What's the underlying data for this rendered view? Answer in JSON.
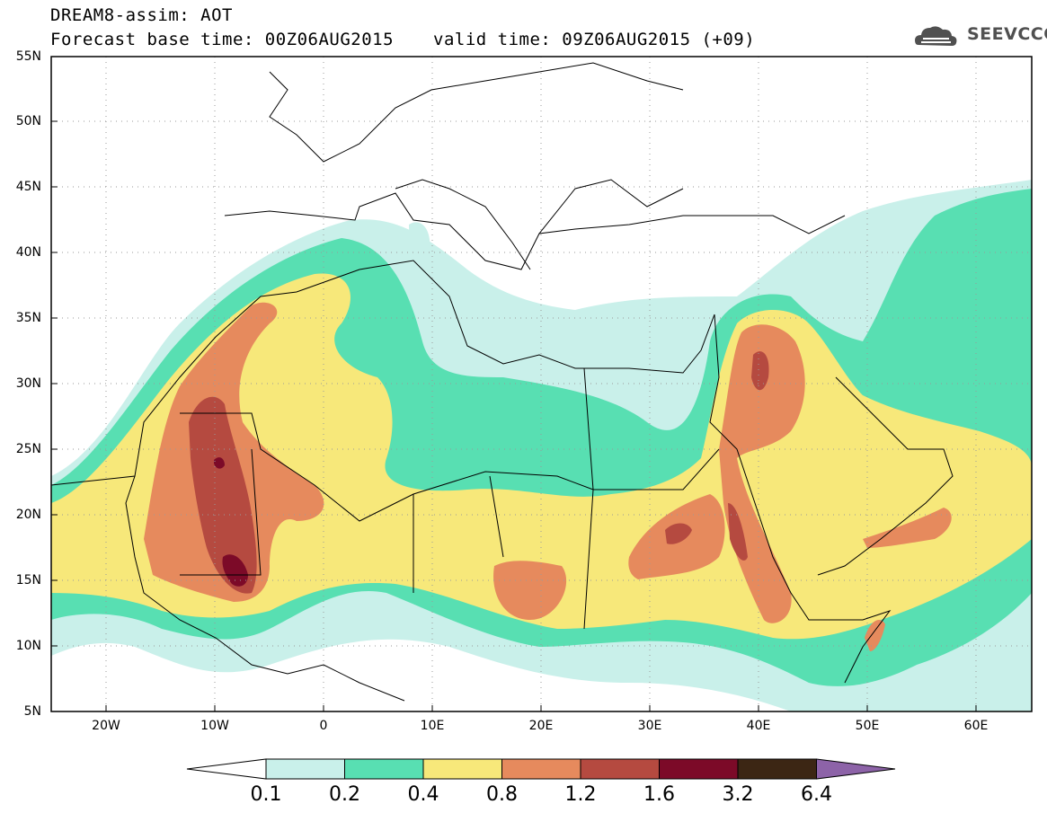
{
  "header": {
    "title": "DREAM8-assim: AOT",
    "base_time": "Forecast base time: 00Z06AUG2015",
    "valid_time": "valid time: 09Z06AUG2015 (+09)"
  },
  "logo": {
    "text": "SEEVCCC",
    "icon": "cloud-logo-icon"
  },
  "map": {
    "lat_labels": [
      "55N",
      "50N",
      "45N",
      "40N",
      "35N",
      "30N",
      "25N",
      "20N",
      "15N",
      "10N",
      "5N"
    ],
    "lon_labels": [
      "20W",
      "10W",
      "0",
      "10E",
      "20E",
      "30E",
      "40E",
      "50E",
      "60E"
    ],
    "lat_range": [
      5,
      55
    ],
    "lon_range": [
      -25,
      65
    ],
    "grid": "dotted"
  },
  "legend": {
    "thresholds": [
      "0.1",
      "0.2",
      "0.4",
      "0.8",
      "1.2",
      "1.6",
      "3.2",
      "6.4"
    ],
    "colors": [
      "#ffffff",
      "#c9f0ea",
      "#58dfb2",
      "#f7e87a",
      "#e68a5d",
      "#b54a40",
      "#7c0a28",
      "#3c2614",
      "#8d63a8"
    ]
  },
  "colors": {
    "c1": "#c9f0ea",
    "c2": "#58dfb2",
    "c3": "#f7e87a",
    "c4": "#e68a5d",
    "c5": "#b54a40",
    "c6": "#7c0a28"
  }
}
